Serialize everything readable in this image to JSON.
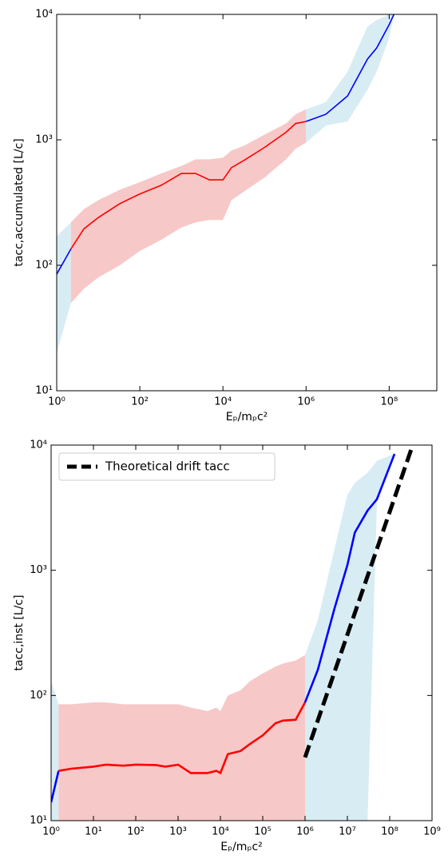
{
  "chart_data": [
    {
      "type": "line",
      "xscale": "log",
      "yscale": "log",
      "x_label": "Eₚ/mₚc²",
      "y_label": "tacc,accumulated [L/c]",
      "xlim": [
        1,
        1400000000
      ],
      "ylim": [
        10,
        10000
      ],
      "xticks": [
        {
          "value": 1,
          "label": "10⁰"
        },
        {
          "value": 100,
          "label": "10²"
        },
        {
          "value": 10000,
          "label": "10⁴"
        },
        {
          "value": 1000000,
          "label": "10⁶"
        },
        {
          "value": 100000000,
          "label": "10⁸"
        }
      ],
      "yticks": [
        {
          "value": 10,
          "label": "10¹"
        },
        {
          "value": 100,
          "label": "10²"
        },
        {
          "value": 1000,
          "label": "10³"
        },
        {
          "value": 10000,
          "label": "10⁴"
        }
      ],
      "series": [
        {
          "color": "#0000ff",
          "band_color": "#d8ecf4",
          "x": [
            1,
            2.2
          ],
          "values": [
            85,
            135
          ],
          "lower": [
            20,
            50
          ],
          "upper": [
            170,
            220
          ]
        },
        {
          "color": "#ff0000",
          "band_color": "#f7c8c8",
          "x": [
            2.2,
            4.5,
            10,
            33,
            100,
            330,
            1000,
            2200,
            4700,
            10000,
            16000,
            33000,
            100000,
            330000,
            560000,
            1000000
          ],
          "values": [
            135,
            195,
            240,
            310,
            370,
            435,
            540,
            540,
            480,
            480,
            600,
            690,
            870,
            1150,
            1350,
            1400
          ],
          "lower": [
            50,
            65,
            80,
            100,
            130,
            160,
            200,
            220,
            230,
            230,
            330,
            390,
            500,
            700,
            850,
            950
          ],
          "upper": [
            220,
            280,
            330,
            400,
            460,
            540,
            620,
            700,
            700,
            720,
            820,
            900,
            1100,
            1350,
            1600,
            1750
          ]
        },
        {
          "color": "#0000ff",
          "band_color": "#d8ecf4",
          "x": [
            1000000,
            3000000,
            10000000,
            30000000,
            50000000,
            100000000,
            130000000
          ],
          "values": [
            1400,
            1600,
            2240,
            4400,
            5400,
            8300,
            10000
          ],
          "lower": [
            950,
            1300,
            1400,
            2500,
            3500,
            6500,
            10000
          ],
          "upper": [
            1750,
            2000,
            3500,
            8000,
            9000,
            10000,
            10000
          ]
        }
      ]
    },
    {
      "type": "line",
      "xscale": "log",
      "yscale": "log",
      "x_label": "Eₚ/mₚc²",
      "y_label": "tacc,inst [L/c]",
      "xlim": [
        1,
        1000000000
      ],
      "ylim": [
        10,
        10000
      ],
      "legend": "upper-left",
      "xticks": [
        {
          "value": 1,
          "label": "10⁰"
        },
        {
          "value": 10,
          "label": "10¹"
        },
        {
          "value": 100,
          "label": "10²"
        },
        {
          "value": 1000,
          "label": "10³"
        },
        {
          "value": 10000,
          "label": "10⁴"
        },
        {
          "value": 100000,
          "label": "10⁵"
        },
        {
          "value": 1000000,
          "label": "10⁶"
        },
        {
          "value": 10000000,
          "label": "10⁷"
        },
        {
          "value": 100000000,
          "label": "10⁸"
        },
        {
          "value": 1000000000,
          "label": "10⁹"
        }
      ],
      "yticks": [
        {
          "value": 10,
          "label": "10¹"
        },
        {
          "value": 100,
          "label": "10²"
        },
        {
          "value": 1000,
          "label": "10³"
        },
        {
          "value": 10000,
          "label": "10⁴"
        }
      ],
      "series": [
        {
          "color": "#0000ff",
          "band_color": "#d8ecf4",
          "x": [
            1,
            1.5
          ],
          "values": [
            14,
            25
          ],
          "lower": [
            10,
            10
          ],
          "upper": [
            130,
            85
          ]
        },
        {
          "color": "#ff0000",
          "band_color": "#f7c8c8",
          "x": [
            1.5,
            3,
            10,
            20,
            50,
            100,
            300,
            500,
            1000,
            2000,
            5000,
            8000,
            10000,
            15000,
            30000,
            50000,
            100000,
            200000,
            300000,
            600000,
            1000000
          ],
          "values": [
            25,
            26,
            27,
            28,
            27.5,
            28,
            27.8,
            27,
            28,
            24,
            24,
            25,
            24,
            34,
            36,
            41,
            48,
            60,
            63,
            64,
            88
          ],
          "lower": [
            10,
            10,
            10,
            10,
            10,
            10,
            10,
            10,
            10,
            10,
            10,
            10,
            10,
            10,
            10,
            10,
            10,
            10,
            10,
            10,
            10
          ],
          "upper": [
            85,
            85,
            88,
            88,
            85,
            85,
            85,
            85,
            85,
            80,
            75,
            80,
            75,
            100,
            110,
            130,
            150,
            170,
            180,
            190,
            210
          ]
        },
        {
          "color": "#0000ff",
          "band_color": "#d8ecf4",
          "x": [
            1000000,
            2000000,
            5000000,
            10000000,
            15000000,
            30000000,
            50000000,
            130000000
          ],
          "values": [
            88,
            160,
            500,
            1100,
            2000,
            3000,
            3700,
            8500
          ],
          "lower": [
            10,
            10,
            10,
            10,
            10,
            10,
            3500,
            8500
          ],
          "upper": [
            210,
            400,
            1500,
            4000,
            5000,
            6000,
            7500,
            8500
          ]
        },
        {
          "name": "Theoretical drift tacc",
          "color": "#000000",
          "style": "dashed",
          "x": [
            1000000,
            350000000
          ],
          "values": [
            32,
            10000
          ]
        }
      ]
    }
  ]
}
